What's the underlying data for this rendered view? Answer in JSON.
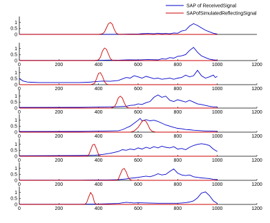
{
  "chart_data": [
    {
      "type": "line",
      "xlim": [
        0,
        1200
      ],
      "ylim": [
        0,
        1.5
      ],
      "yticks": [
        0,
        0.5,
        1
      ],
      "xticks": [],
      "legend": {
        "placement": "top-right",
        "entries": [
          "SAP of ReceivedSignal",
          "SAPofSimulatedReflectingSignal"
        ]
      },
      "series": [
        {
          "name": "SAP of ReceivedSignal",
          "color": "#0000cc",
          "x": [
            0,
            500,
            560,
            600,
            620,
            650,
            680,
            700,
            720,
            740,
            760,
            780,
            800,
            820,
            840,
            860,
            880,
            900,
            920,
            940,
            960,
            980,
            1000
          ],
          "y": [
            0.01,
            0.01,
            0.03,
            0.03,
            0.06,
            0.08,
            0.05,
            0.1,
            0.06,
            0.08,
            0.05,
            0.12,
            0.1,
            0.28,
            0.35,
            0.7,
            0.9,
            0.75,
            0.55,
            0.35,
            0.22,
            0.1,
            0.03
          ]
        },
        {
          "name": "SAPofSimulatedReflectingSignal",
          "color": "#cc0000",
          "x": [
            0,
            400,
            420,
            430,
            440,
            450,
            460,
            470,
            480,
            490,
            500,
            520,
            1000
          ],
          "y": [
            0,
            0,
            0.05,
            0.2,
            0.55,
            0.9,
            1.0,
            0.85,
            0.4,
            0.1,
            0.02,
            0,
            0
          ]
        }
      ]
    },
    {
      "type": "line",
      "xlim": [
        0,
        1200
      ],
      "ylim": [
        0,
        1.5
      ],
      "yticks": [
        0,
        0.5,
        1
      ],
      "xticks": [
        0,
        200,
        400,
        600,
        800,
        1000,
        1200
      ],
      "series": [
        {
          "color": "#0000cc",
          "x": [
            0,
            400,
            450,
            500,
            550,
            600,
            650,
            700,
            720,
            740,
            760,
            780,
            800,
            820,
            840,
            860,
            880,
            900,
            920,
            940,
            960,
            980,
            1000
          ],
          "y": [
            0.02,
            0.02,
            0.04,
            0.03,
            0.06,
            0.05,
            0.08,
            0.06,
            0.15,
            0.12,
            0.25,
            0.2,
            0.35,
            0.4,
            0.5,
            0.85,
            1.1,
            0.7,
            0.4,
            0.25,
            0.12,
            0.06,
            0.03
          ]
        },
        {
          "color": "#cc0000",
          "x": [
            0,
            380,
            400,
            410,
            420,
            430,
            440,
            450,
            460,
            470,
            480,
            1000
          ],
          "y": [
            0,
            0,
            0.05,
            0.3,
            0.8,
            1.05,
            0.95,
            0.55,
            0.15,
            0.03,
            0,
            0
          ]
        }
      ]
    },
    {
      "type": "line",
      "xlim": [
        0,
        1200
      ],
      "ylim": [
        0,
        1.5
      ],
      "yticks": [
        0,
        0.5,
        1
      ],
      "xticks": [
        0,
        200,
        400,
        600,
        800,
        1000,
        1200
      ],
      "series": [
        {
          "color": "#0000cc",
          "x": [
            0,
            20,
            40,
            60,
            100,
            200,
            300,
            350,
            380,
            420,
            460,
            500,
            540,
            560,
            580,
            600,
            620,
            640,
            660,
            680,
            700,
            720,
            740,
            760,
            780,
            800,
            820,
            840,
            860,
            880,
            900,
            920,
            940,
            960,
            980,
            990,
            1000
          ],
          "y": [
            0.5,
            0.3,
            0.22,
            0.2,
            0.18,
            0.18,
            0.18,
            0.2,
            0.25,
            0.3,
            0.28,
            0.35,
            0.6,
            0.55,
            0.75,
            0.65,
            0.55,
            0.7,
            0.6,
            0.5,
            0.55,
            0.45,
            0.5,
            0.55,
            0.45,
            0.55,
            0.6,
            0.8,
            0.65,
            0.75,
            1.2,
            0.75,
            0.55,
            0.65,
            0.8,
            0.6,
            0.7
          ]
        },
        {
          "color": "#cc0000",
          "x": [
            0,
            360,
            380,
            390,
            400,
            410,
            420,
            430,
            440,
            450,
            1000
          ],
          "y": [
            0,
            0,
            0.1,
            0.5,
            0.95,
            1.0,
            0.7,
            0.25,
            0.05,
            0,
            0
          ]
        }
      ]
    },
    {
      "type": "line",
      "xlim": [
        0,
        1200
      ],
      "ylim": [
        0,
        1.5
      ],
      "yticks": [
        0,
        0.5,
        1
      ],
      "xticks": [
        0,
        200,
        400,
        600,
        800,
        1000,
        1200
      ],
      "series": [
        {
          "color": "#0000cc",
          "x": [
            0,
            300,
            400,
            450,
            500,
            540,
            560,
            580,
            600,
            620,
            640,
            660,
            680,
            700,
            720,
            740,
            760,
            780,
            800,
            820,
            840,
            860,
            880,
            900,
            920,
            940,
            960,
            980,
            1000
          ],
          "y": [
            0.05,
            0.06,
            0.08,
            0.1,
            0.12,
            0.15,
            0.22,
            0.25,
            0.35,
            0.3,
            0.45,
            0.55,
            0.9,
            1.1,
            0.9,
            1.0,
            0.65,
            0.55,
            0.7,
            0.6,
            0.5,
            0.65,
            0.5,
            0.35,
            0.3,
            0.22,
            0.15,
            0.1,
            0.1
          ]
        },
        {
          "color": "#cc0000",
          "x": [
            0,
            460,
            480,
            490,
            500,
            510,
            520,
            530,
            540,
            550,
            560,
            1000
          ],
          "y": [
            0,
            0,
            0.1,
            0.4,
            0.85,
            1.0,
            0.85,
            0.45,
            0.12,
            0.02,
            0,
            0
          ]
        }
      ]
    },
    {
      "type": "line",
      "xlim": [
        0,
        1200
      ],
      "ylim": [
        0,
        1.5
      ],
      "yticks": [
        0,
        0.5,
        1
      ],
      "xticks": [
        0,
        200,
        400,
        600,
        800,
        1000,
        1200
      ],
      "series": [
        {
          "color": "#0000cc",
          "x": [
            0,
            300,
            400,
            450,
            500,
            520,
            540,
            560,
            580,
            600,
            610,
            620,
            640,
            660,
            680,
            700,
            720,
            740,
            760,
            780,
            800,
            820,
            840,
            860,
            880,
            900,
            920,
            940,
            960,
            980,
            1000
          ],
          "y": [
            0.05,
            0.06,
            0.08,
            0.1,
            0.12,
            0.2,
            0.35,
            0.5,
            0.75,
            1.0,
            1.15,
            0.95,
            1.05,
            0.95,
            1.0,
            0.9,
            0.75,
            0.6,
            0.5,
            0.4,
            0.32,
            0.28,
            0.22,
            0.2,
            0.16,
            0.14,
            0.12,
            0.1,
            0.1,
            0.08,
            0.07
          ]
        },
        {
          "color": "#cc0000",
          "x": [
            0,
            560,
            580,
            600,
            610,
            620,
            630,
            640,
            650,
            660,
            670,
            690,
            1000
          ],
          "y": [
            0,
            0,
            0.1,
            0.4,
            0.65,
            0.9,
            1.0,
            0.9,
            0.6,
            0.25,
            0.08,
            0,
            0
          ]
        }
      ]
    },
    {
      "type": "line",
      "xlim": [
        0,
        1200
      ],
      "ylim": [
        0,
        1.5
      ],
      "yticks": [
        0,
        0.5,
        1
      ],
      "xticks": [
        0,
        200,
        400,
        600,
        800,
        1000,
        1200
      ],
      "series": [
        {
          "color": "#0000cc",
          "x": [
            0,
            200,
            300,
            380,
            420,
            460,
            500,
            520,
            540,
            560,
            580,
            600,
            620,
            640,
            660,
            680,
            700,
            720,
            740,
            760,
            780,
            800,
            820,
            840,
            860,
            880,
            900,
            920,
            940,
            960,
            980,
            1000
          ],
          "y": [
            0.04,
            0.05,
            0.06,
            0.08,
            0.15,
            0.25,
            0.4,
            0.55,
            0.5,
            0.6,
            0.55,
            0.7,
            0.6,
            0.75,
            0.65,
            0.8,
            0.7,
            0.85,
            0.75,
            0.7,
            0.8,
            0.6,
            0.65,
            0.55,
            0.75,
            0.9,
            1.0,
            1.05,
            1.0,
            0.9,
            0.6,
            0.4
          ]
        },
        {
          "color": "#cc0000",
          "x": [
            0,
            340,
            350,
            360,
            370,
            380,
            390,
            400,
            410,
            1000
          ],
          "y": [
            0,
            0,
            0.1,
            0.5,
            0.95,
            1.0,
            0.6,
            0.15,
            0,
            0
          ]
        }
      ]
    },
    {
      "type": "line",
      "xlim": [
        0,
        1200
      ],
      "ylim": [
        0,
        1.5
      ],
      "yticks": [
        0,
        0.5,
        1
      ],
      "xticks": [
        0,
        200,
        400,
        600,
        800,
        1000,
        1200
      ],
      "series": [
        {
          "color": "#0000cc",
          "x": [
            0,
            300,
            400,
            450,
            500,
            540,
            560,
            580,
            600,
            620,
            640,
            660,
            680,
            700,
            720,
            740,
            760,
            780,
            800,
            820,
            840,
            860,
            880,
            900,
            920,
            940,
            960,
            980,
            1000
          ],
          "y": [
            0.02,
            0.02,
            0.03,
            0.03,
            0.05,
            0.12,
            0.18,
            0.2,
            0.25,
            0.3,
            0.35,
            0.3,
            0.4,
            0.55,
            0.45,
            0.5,
            0.75,
            0.95,
            0.6,
            0.45,
            0.4,
            0.45,
            0.3,
            0.25,
            0.2,
            0.18,
            0.15,
            0.08,
            0.06
          ]
        },
        {
          "color": "#cc0000",
          "x": [
            0,
            490,
            500,
            510,
            520,
            530,
            540,
            550,
            560,
            570,
            1000
          ],
          "y": [
            0,
            0,
            0.1,
            0.5,
            0.9,
            1.0,
            0.7,
            0.25,
            0.05,
            0,
            0
          ]
        }
      ]
    },
    {
      "type": "line",
      "xlim": [
        0,
        1200
      ],
      "ylim": [
        0,
        1.5
      ],
      "yticks": [
        0,
        0.5,
        1
      ],
      "xticks": [
        0,
        200,
        400,
        600,
        800,
        1000,
        1200
      ],
      "series": [
        {
          "color": "#0000cc",
          "x": [
            0,
            300,
            400,
            450,
            500,
            540,
            560,
            580,
            600,
            650,
            700,
            750,
            800,
            820,
            840,
            860,
            880,
            900,
            920,
            940,
            960,
            980,
            1000
          ],
          "y": [
            0.02,
            0.02,
            0.03,
            0.05,
            0.08,
            0.18,
            0.15,
            0.12,
            0.14,
            0.12,
            0.1,
            0.1,
            0.1,
            0.12,
            0.15,
            0.2,
            0.3,
            0.55,
            0.95,
            1.05,
            0.75,
            0.3,
            0.08
          ]
        },
        {
          "color": "#cc0000",
          "x": [
            0,
            330,
            340,
            350,
            360,
            370,
            380,
            390,
            1000
          ],
          "y": [
            0,
            0,
            0.15,
            0.6,
            1.0,
            0.75,
            0.15,
            0,
            0
          ]
        }
      ]
    }
  ]
}
